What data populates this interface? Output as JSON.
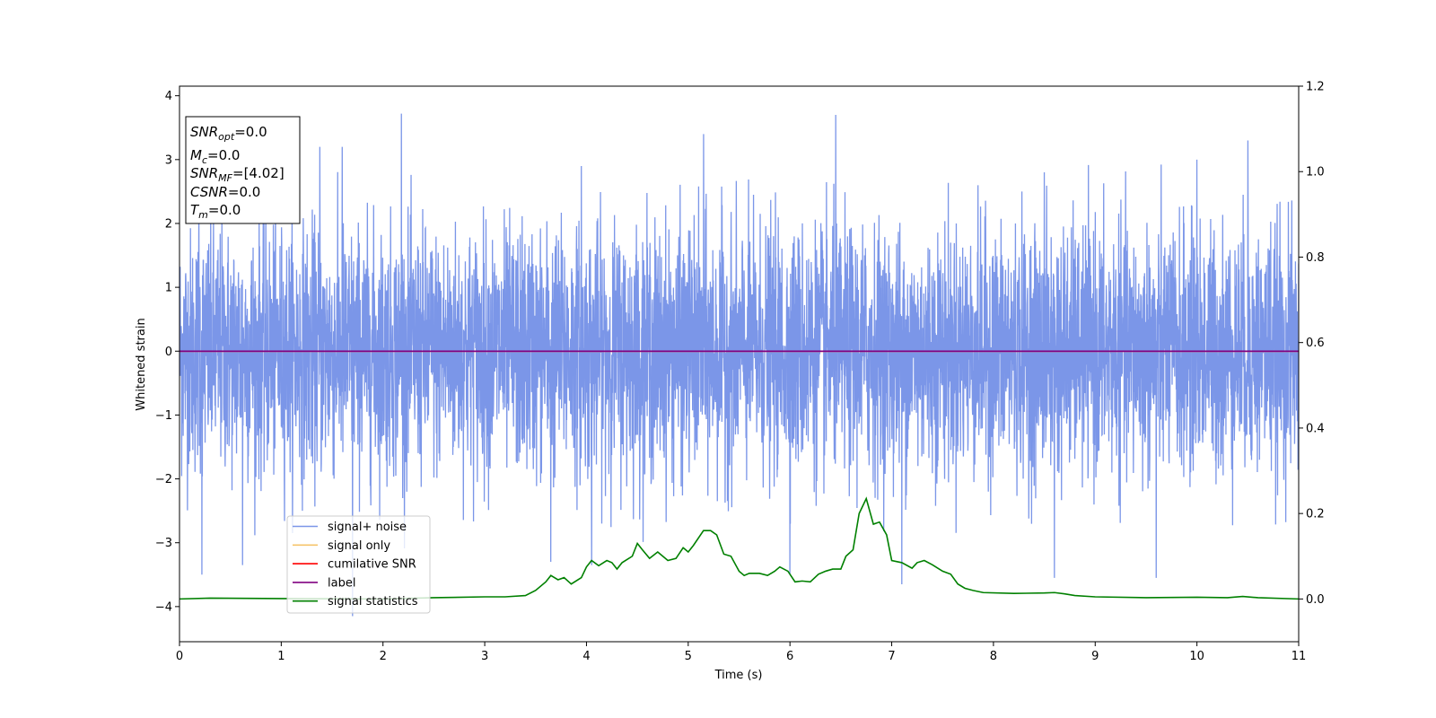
{
  "chart_data": {
    "type": "line",
    "xlabel": "Time (s)",
    "ylabel": "Whitened strain",
    "xlim": [
      0,
      11
    ],
    "ylim": [
      -4.55,
      4.15
    ],
    "y2lim": [
      -0.1,
      1.2
    ],
    "x_ticks": [
      "0",
      "1",
      "2",
      "3",
      "4",
      "5",
      "6",
      "7",
      "8",
      "9",
      "10",
      "11"
    ],
    "y_ticks": [
      "4",
      "3",
      "2",
      "1",
      "0",
      "−1",
      "−2",
      "−3",
      "−4"
    ],
    "y2_ticks": [
      "1.2",
      "1.0",
      "0.8",
      "0.6",
      "0.4",
      "0.2",
      "0.0"
    ],
    "legend_position": "lower-left",
    "series": [
      {
        "name": "signal+ noise",
        "color": "#7b96e8",
        "description": "dense whitened noise, amplitude mostly within ±2",
        "peaks_high": [
          [
            0.19,
            2.3
          ],
          [
            1.38,
            3.2
          ],
          [
            1.6,
            3.2
          ],
          [
            2.18,
            3.72
          ],
          [
            3.95,
            2.9
          ],
          [
            5.15,
            3.4
          ],
          [
            6.45,
            3.7
          ],
          [
            8.5,
            2.8
          ],
          [
            10.0,
            3.0
          ],
          [
            10.5,
            3.3
          ]
        ],
        "peaks_low": [
          [
            0.22,
            -3.5
          ],
          [
            0.62,
            -3.35
          ],
          [
            1.7,
            -4.15
          ],
          [
            3.65,
            -3.3
          ],
          [
            4.05,
            -3.35
          ],
          [
            6.0,
            -3.5
          ],
          [
            7.1,
            -3.65
          ],
          [
            8.6,
            -3.55
          ],
          [
            9.6,
            -3.55
          ]
        ]
      },
      {
        "name": "signal only",
        "color": "#f6c46b",
        "values": [
          [
            0,
            0
          ],
          [
            11,
            0
          ]
        ]
      },
      {
        "name": "cumilative SNR",
        "color": "#ff0000",
        "values": [
          [
            0,
            0
          ],
          [
            11,
            0
          ]
        ]
      },
      {
        "name": "label",
        "color": "#800080",
        "values": [
          [
            0,
            0
          ],
          [
            11,
            0
          ]
        ]
      },
      {
        "name": "signal statistics",
        "color": "#008000",
        "axis": "right",
        "values": [
          [
            0,
            0
          ],
          [
            0.3,
            0.002
          ],
          [
            1,
            0.001
          ],
          [
            2,
            0.0
          ],
          [
            2.5,
            0.003
          ],
          [
            3,
            0.005
          ],
          [
            3.2,
            0.005
          ],
          [
            3.4,
            0.008
          ],
          [
            3.5,
            0.02
          ],
          [
            3.6,
            0.04
          ],
          [
            3.65,
            0.055
          ],
          [
            3.72,
            0.045
          ],
          [
            3.78,
            0.05
          ],
          [
            3.85,
            0.035
          ],
          [
            3.95,
            0.05
          ],
          [
            4.0,
            0.075
          ],
          [
            4.05,
            0.09
          ],
          [
            4.12,
            0.078
          ],
          [
            4.2,
            0.09
          ],
          [
            4.25,
            0.085
          ],
          [
            4.3,
            0.07
          ],
          [
            4.35,
            0.085
          ],
          [
            4.45,
            0.1
          ],
          [
            4.5,
            0.13
          ],
          [
            4.55,
            0.115
          ],
          [
            4.62,
            0.095
          ],
          [
            4.7,
            0.11
          ],
          [
            4.75,
            0.1
          ],
          [
            4.8,
            0.09
          ],
          [
            4.88,
            0.095
          ],
          [
            4.95,
            0.12
          ],
          [
            5.0,
            0.11
          ],
          [
            5.05,
            0.125
          ],
          [
            5.15,
            0.16
          ],
          [
            5.22,
            0.16
          ],
          [
            5.28,
            0.15
          ],
          [
            5.35,
            0.105
          ],
          [
            5.42,
            0.1
          ],
          [
            5.5,
            0.065
          ],
          [
            5.55,
            0.055
          ],
          [
            5.6,
            0.06
          ],
          [
            5.7,
            0.06
          ],
          [
            5.78,
            0.055
          ],
          [
            5.85,
            0.065
          ],
          [
            5.9,
            0.075
          ],
          [
            5.98,
            0.065
          ],
          [
            6.05,
            0.04
          ],
          [
            6.12,
            0.042
          ],
          [
            6.2,
            0.04
          ],
          [
            6.28,
            0.058
          ],
          [
            6.35,
            0.065
          ],
          [
            6.42,
            0.07
          ],
          [
            6.5,
            0.07
          ],
          [
            6.55,
            0.1
          ],
          [
            6.62,
            0.115
          ],
          [
            6.68,
            0.2
          ],
          [
            6.75,
            0.235
          ],
          [
            6.82,
            0.175
          ],
          [
            6.88,
            0.18
          ],
          [
            6.95,
            0.15
          ],
          [
            7.0,
            0.09
          ],
          [
            7.1,
            0.085
          ],
          [
            7.2,
            0.072
          ],
          [
            7.25,
            0.085
          ],
          [
            7.32,
            0.09
          ],
          [
            7.4,
            0.08
          ],
          [
            7.5,
            0.065
          ],
          [
            7.58,
            0.058
          ],
          [
            7.65,
            0.035
          ],
          [
            7.72,
            0.025
          ],
          [
            7.8,
            0.02
          ],
          [
            7.9,
            0.015
          ],
          [
            8.2,
            0.013
          ],
          [
            8.5,
            0.014
          ],
          [
            8.6,
            0.015
          ],
          [
            8.7,
            0.012
          ],
          [
            8.8,
            0.008
          ],
          [
            9.0,
            0.005
          ],
          [
            9.5,
            0.003
          ],
          [
            10.0,
            0.004
          ],
          [
            10.3,
            0.003
          ],
          [
            10.45,
            0.006
          ],
          [
            10.6,
            0.003
          ],
          [
            11,
            0.0
          ]
        ]
      }
    ],
    "annotations": {
      "snr_opt": "=0.0",
      "mc": "=0.0",
      "snr_mf": "=[4.02]",
      "csnr": "=0.0",
      "tm": "=0.0"
    }
  },
  "info_labels": {
    "snr_opt_base": "SNR",
    "snr_opt_sub": "opt",
    "mc_base": "M",
    "mc_sub": "c",
    "snr_mf_base": "SNR",
    "snr_mf_sub": "MF",
    "csnr_base": "CSNR",
    "tm_base": "T",
    "tm_sub": "m"
  }
}
